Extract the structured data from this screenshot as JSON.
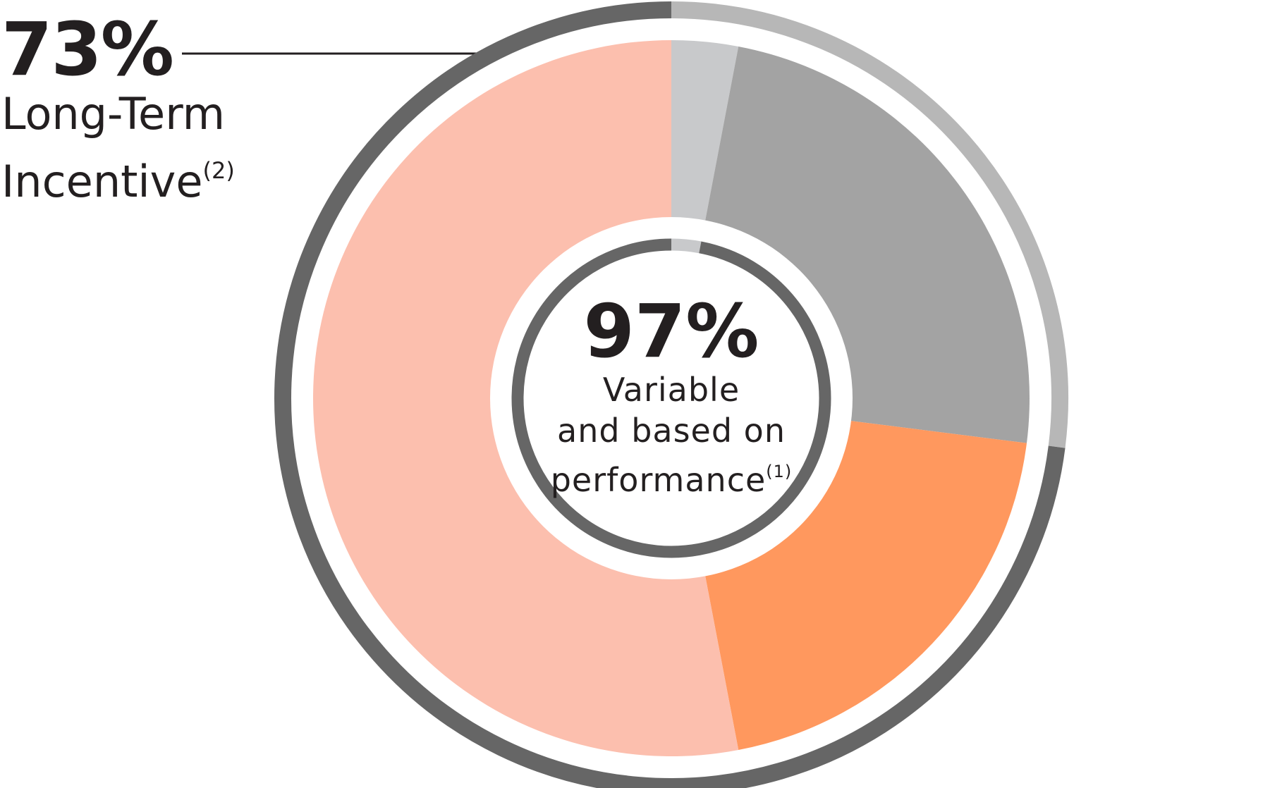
{
  "callout": {
    "value": "73%",
    "line1": "Long-Term",
    "line2": "Incentive",
    "footnote": "(2)"
  },
  "center": {
    "value": "97%",
    "line1": "Variable",
    "line2": "and based on",
    "line3": "performance",
    "footnote": "(1)"
  },
  "chart_data": {
    "type": "pie",
    "title": "",
    "slices": [
      {
        "label": "",
        "value": 3,
        "color": "#c8c9cb"
      },
      {
        "label": "",
        "value": 24,
        "color": "#a3a3a3"
      },
      {
        "label": "",
        "value": 20,
        "color": "#ff985e"
      },
      {
        "label": "Long-Term Incentive",
        "value": 53,
        "color": "#fcbfae"
      }
    ],
    "outer_ring": [
      {
        "label": "",
        "value": 27,
        "color": "#b7b7b7"
      },
      {
        "label": "Long-Term Incentive",
        "value": 73,
        "color": "#666666"
      }
    ],
    "inner_ring": [
      {
        "label": "",
        "value": 3,
        "color": "#c8c9cb"
      },
      {
        "label": "Variable and based on performance",
        "value": 97,
        "color": "#666666"
      }
    ]
  }
}
